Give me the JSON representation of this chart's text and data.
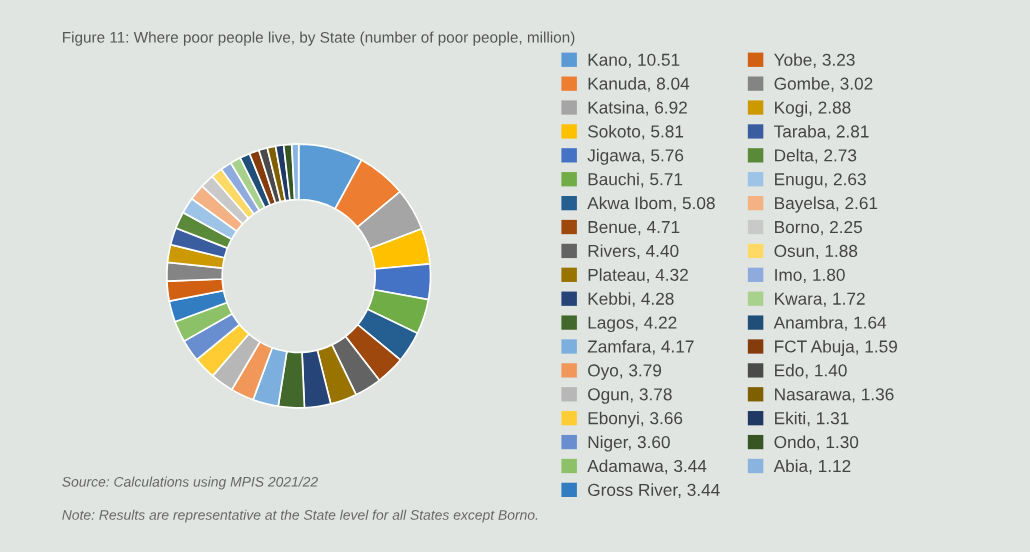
{
  "chart_data": {
    "type": "donut",
    "title": "Figure 11: Where poor people live, by State (number of poor people, million)",
    "categories": [
      "Kano",
      "Kanuda",
      "Katsina",
      "Sokoto",
      "Jigawa",
      "Bauchi",
      "Akwa Ibom",
      "Benue",
      "Rivers",
      "Plateau",
      "Kebbi",
      "Lagos",
      "Zamfara",
      "Oyo",
      "Ogun",
      "Ebonyi",
      "Niger",
      "Adamawa",
      "Gross River",
      "Yobe",
      "Gombe",
      "Kogi",
      "Taraba",
      "Delta",
      "Enugu",
      "Bayelsa",
      "Borno",
      "Osun",
      "Imo",
      "Kwara",
      "Anambra",
      "FCT Abuja",
      "Edo",
      "Nasarawa",
      "Ekiti",
      "Ondo",
      "Abia"
    ],
    "values": [
      10.51,
      8.04,
      6.92,
      5.81,
      5.76,
      5.71,
      5.08,
      4.71,
      4.4,
      4.32,
      4.28,
      4.22,
      4.17,
      3.79,
      3.78,
      3.66,
      3.6,
      3.44,
      3.44,
      3.23,
      3.02,
      2.88,
      2.81,
      2.73,
      2.63,
      2.61,
      2.25,
      1.88,
      1.8,
      1.72,
      1.64,
      1.59,
      1.4,
      1.36,
      1.31,
      1.3,
      1.12
    ],
    "value_labels": [
      "10.51",
      "8.04",
      "6.92",
      "5.81",
      "5.76",
      "5.71",
      "5.08",
      "4.71",
      "4.40",
      "4.32",
      "4.28",
      "4.22",
      "4.17",
      "3.79",
      "3.78",
      "3.66",
      "3.60",
      "3.44",
      "3.44",
      "3.23",
      "3.02",
      "2.88",
      "2.81",
      "2.73",
      "2.63",
      "2.61",
      "2.25",
      "1.88",
      "1.80",
      "1.72",
      "1.64",
      "1.59",
      "1.40",
      "1.36",
      "1.31",
      "1.30",
      "1.12"
    ],
    "colors": [
      "#5b9bd5",
      "#ed7d31",
      "#a5a5a5",
      "#ffc000",
      "#4472c4",
      "#70ad47",
      "#255e91",
      "#9e480e",
      "#636363",
      "#997300",
      "#264478",
      "#43682b",
      "#7cafdd",
      "#f1975a",
      "#b7b7b7",
      "#ffcd33",
      "#698ed0",
      "#8cc168",
      "#327dc2",
      "#d26012",
      "#848484",
      "#cc9a00",
      "#3a5da0",
      "#5a8a39",
      "#9dc3e6",
      "#f4b183",
      "#c9c9c9",
      "#ffd966",
      "#8faadc",
      "#a9d18e",
      "#1f4e79",
      "#843c0c",
      "#4a4a4a",
      "#7f6000",
      "#203864",
      "#375623",
      "#8ab4e0"
    ],
    "legend": "right",
    "annotations": [
      "Source: Calculations using MPIS 2021/22",
      "Note: Results are representative at the State level for all States except Borno."
    ]
  }
}
